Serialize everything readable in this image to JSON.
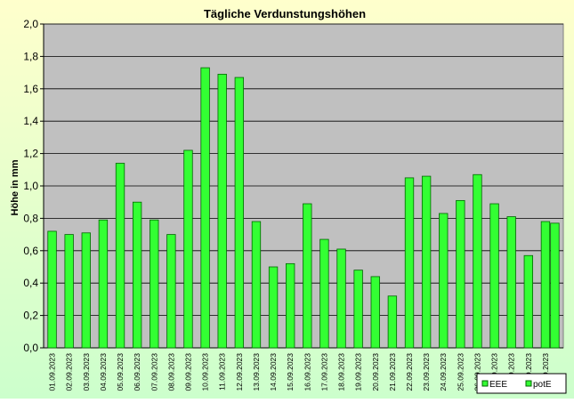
{
  "colors": {
    "background_top": "#ffffcc",
    "background_bottom": "#ccffcc",
    "plot_area": "#c0c0c0",
    "bar_fill": "#33ff33",
    "bar_stroke": "#006600",
    "grid": "#000000",
    "text": "#000000"
  },
  "chart_data": {
    "type": "bar",
    "title": "Tägliche Verdunstungshöhen",
    "xlabel": "",
    "ylabel": "Höhe in mm",
    "ylim": [
      0,
      2.0
    ],
    "yticks": [
      "0,0",
      "0,2",
      "0,4",
      "0,6",
      "0,8",
      "1,0",
      "1,2",
      "1,4",
      "1,6",
      "1,8",
      "2,0"
    ],
    "grid": true,
    "legend_position": "bottom-right",
    "legend": [
      "EEE",
      "potE"
    ],
    "categories": [
      "01.09.2023",
      "02.09.2023",
      "03.09.2023",
      "04.09.2023",
      "05.09.2023",
      "06.09.2023",
      "07.09.2023",
      "08.09.2023",
      "09.09.2023",
      "10.09.2023",
      "11.09.2023",
      "12.09.2023",
      "13.09.2023",
      "14.09.2023",
      "15.09.2023",
      "16.09.2023",
      "17.09.2023",
      "18.09.2023",
      "19.09.2023",
      "20.09.2023",
      "21.09.2023",
      "22.09.2023",
      "23.09.2023",
      "24.09.2023",
      "25.09.2023",
      "26.09.2023",
      "27.09.2023",
      "28.09.2023",
      "29.09.2023",
      "30.09.2023"
    ],
    "series": [
      {
        "name": "potE",
        "values": [
          0.72,
          0.7,
          0.71,
          0.79,
          1.14,
          0.9,
          0.79,
          0.7,
          1.22,
          1.73,
          1.69,
          1.67,
          0.78,
          0.5,
          0.52,
          0.89,
          0.67,
          0.61,
          0.48,
          0.44,
          0.32,
          1.05,
          1.06,
          0.83,
          0.91,
          1.07,
          0.89,
          0.81,
          0.57,
          0.78
        ]
      }
    ],
    "extra_last_value": 0.77
  }
}
